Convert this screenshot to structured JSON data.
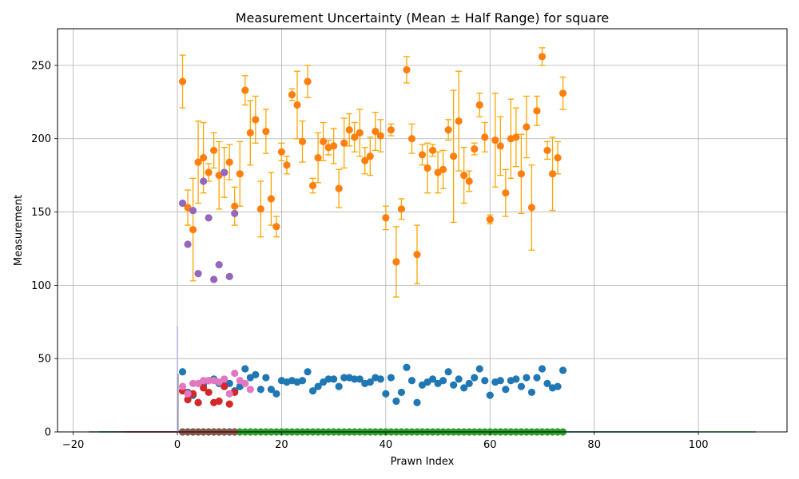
{
  "chart_data": {
    "type": "scatter",
    "title": "Measurement Uncertainty (Mean ± Half Range) for square",
    "xlabel": "Prawn Index",
    "ylabel": "Measurement",
    "xlim": [
      -23,
      117
    ],
    "ylim": [
      0,
      275
    ],
    "xticks": [
      -20,
      0,
      20,
      40,
      60,
      80,
      100
    ],
    "yticks": [
      0,
      50,
      100,
      150,
      200,
      250
    ],
    "grid": true,
    "legend": "none",
    "errorbar_color": "#ffa500",
    "series": [
      {
        "color": "#ff7f0e",
        "x": [
          1,
          2,
          3,
          4,
          5,
          6,
          7,
          8,
          9,
          10,
          11,
          12,
          13,
          14,
          15,
          16,
          17,
          18,
          19,
          20,
          21,
          22,
          23,
          24,
          25,
          26,
          27,
          28,
          29,
          30,
          31,
          32,
          33,
          34,
          35,
          36,
          37,
          38,
          39,
          40,
          41,
          42,
          43,
          44,
          45,
          46,
          47,
          48,
          49,
          50,
          51,
          52,
          53,
          54,
          55,
          56,
          57,
          58,
          59,
          60,
          61,
          62,
          63,
          64,
          65,
          66,
          67,
          68,
          69,
          70,
          71,
          72,
          73,
          74
        ],
        "y": [
          239,
          153,
          138,
          184,
          187,
          177,
          192,
          175,
          177,
          184,
          154,
          176,
          233,
          204,
          213,
          152,
          205,
          159,
          140,
          191,
          182,
          230,
          223,
          198,
          239,
          168,
          187,
          198,
          194,
          195,
          166,
          197,
          206,
          201,
          204,
          185,
          188,
          205,
          202,
          146,
          206,
          116,
          152,
          247,
          200,
          121,
          189,
          180,
          192,
          177,
          179,
          206,
          188,
          212,
          175,
          171,
          193,
          223,
          201,
          145,
          199,
          195,
          163,
          200,
          201,
          176,
          208,
          153,
          219,
          256,
          192,
          176,
          187,
          231
        ],
        "err": [
          18,
          12,
          35,
          28,
          24,
          6,
          12,
          23,
          17,
          12,
          13,
          22,
          10,
          22,
          16,
          19,
          15,
          18,
          7,
          6,
          6,
          4,
          23,
          14,
          11,
          5,
          17,
          13,
          5,
          12,
          13,
          17,
          11,
          10,
          16,
          9,
          13,
          13,
          11,
          8,
          4,
          24,
          7,
          9,
          10,
          20,
          7,
          17,
          4,
          14,
          13,
          7,
          45,
          34,
          19,
          7,
          4,
          8,
          10,
          3,
          32,
          20,
          16,
          27,
          20,
          27,
          21,
          29,
          10,
          6,
          6,
          25,
          11,
          11
        ]
      },
      {
        "color": "#1f77b4",
        "x": [
          1,
          2,
          3,
          4,
          5,
          6,
          7,
          8,
          9,
          10,
          11,
          12,
          13,
          14,
          15,
          16,
          17,
          18,
          19,
          20,
          21,
          22,
          23,
          24,
          25,
          26,
          27,
          28,
          29,
          30,
          31,
          32,
          33,
          34,
          35,
          36,
          37,
          38,
          39,
          40,
          41,
          42,
          43,
          44,
          45,
          46,
          47,
          48,
          49,
          50,
          51,
          52,
          53,
          54,
          55,
          56,
          57,
          58,
          59,
          60,
          61,
          62,
          63,
          64,
          65,
          66,
          67,
          68,
          69,
          70,
          71,
          72,
          73,
          74
        ],
        "y": [
          41,
          27,
          25,
          20,
          32,
          35,
          36,
          33,
          32,
          33,
          28,
          31,
          43,
          37,
          39,
          29,
          37,
          29,
          26,
          35,
          34,
          35,
          34,
          35,
          41,
          28,
          31,
          34,
          36,
          36,
          31,
          37,
          37,
          36,
          36,
          33,
          34,
          37,
          36,
          26,
          37,
          21,
          27,
          44,
          35,
          20,
          32,
          34,
          36,
          33,
          35,
          41,
          32,
          36,
          30,
          33,
          37,
          43,
          35,
          25,
          34,
          35,
          29,
          35,
          36,
          31,
          37,
          27,
          37,
          43,
          33,
          30,
          31,
          42
        ]
      },
      {
        "color": "#9467bd",
        "x": [
          1,
          2,
          3,
          4,
          5,
          6,
          7,
          8,
          9,
          10,
          11
        ],
        "y": [
          156,
          128,
          151,
          108,
          171,
          146,
          104,
          114,
          177,
          106,
          149
        ]
      },
      {
        "color": "#d62728",
        "x": [
          1,
          2,
          3,
          4,
          5,
          6,
          7,
          8,
          9,
          10,
          11
        ],
        "y": [
          28,
          22,
          26,
          20,
          30,
          27,
          20,
          21,
          31,
          19,
          27
        ]
      },
      {
        "color": "#e377c2",
        "x": [
          1,
          2,
          3,
          4,
          5,
          6,
          7,
          8,
          9,
          10,
          11,
          12,
          13,
          14
        ],
        "y": [
          31,
          26,
          33,
          33,
          35,
          35,
          35,
          34,
          36,
          26,
          40,
          35,
          33,
          29
        ]
      },
      {
        "color": "#2ca02c",
        "x": [
          1,
          2,
          3,
          4,
          5,
          6,
          7,
          8,
          9,
          10,
          11,
          12,
          13,
          14,
          15,
          16,
          17,
          18,
          19,
          20,
          21,
          22,
          23,
          24,
          25,
          26,
          27,
          28,
          29,
          30,
          31,
          32,
          33,
          34,
          35,
          36,
          37,
          38,
          39,
          40,
          41,
          42,
          43,
          44,
          45,
          46,
          47,
          48,
          49,
          50,
          51,
          52,
          53,
          54,
          55,
          56,
          57,
          58,
          59,
          60,
          61,
          62,
          63,
          64,
          65,
          66,
          67,
          68,
          69,
          70,
          71,
          72,
          73,
          74
        ],
        "y": [
          0,
          0,
          0,
          0,
          0,
          0,
          0,
          0,
          0,
          0,
          0,
          0,
          0,
          0,
          0,
          0,
          0,
          0,
          0,
          0,
          0,
          0,
          0,
          0,
          0,
          0,
          0,
          0,
          0,
          0,
          0,
          0,
          0,
          0,
          0,
          0,
          0,
          0,
          0,
          0,
          0,
          0,
          0,
          0,
          0,
          0,
          0,
          0,
          0,
          0,
          0,
          0,
          0,
          0,
          0,
          0,
          0,
          0,
          0,
          0,
          0,
          0,
          0,
          0,
          0,
          0,
          0,
          0,
          0,
          0,
          0,
          0,
          0,
          0
        ]
      },
      {
        "color": "#8c564b",
        "x": [
          1,
          2,
          3,
          4,
          5,
          6,
          7,
          8,
          9,
          10,
          11
        ],
        "y": [
          0,
          0,
          0,
          0,
          0,
          0,
          0,
          0,
          0,
          0,
          0
        ]
      }
    ],
    "baseline_lines": [
      {
        "color": "#2ca02c",
        "x": [
          -17,
          111
        ],
        "y": 0
      },
      {
        "color": "#1f77b4",
        "x": [
          -15,
          100
        ],
        "y": 0
      },
      {
        "color": "#9467bd",
        "x": [
          -12,
          14
        ],
        "y": 0
      },
      {
        "color": "#d62728",
        "x": [
          -10,
          12
        ],
        "y": 0
      }
    ],
    "vertical_spike": {
      "color": "#b0b0e0",
      "x": 0,
      "y": [
        0,
        72
      ]
    }
  }
}
